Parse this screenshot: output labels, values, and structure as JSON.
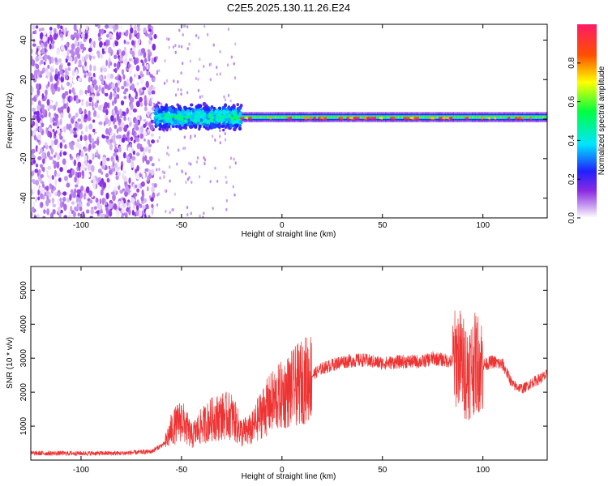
{
  "title": "C2E5.2025.130.11.26.E24",
  "chart_data": [
    {
      "type": "heatmap",
      "xlabel": "Height of straight line (km)",
      "ylabel": "Frequency (Hz)",
      "xlim": [
        -125,
        132
      ],
      "ylim": [
        -50,
        48
      ],
      "xticks": [
        -100,
        -50,
        0,
        50,
        100
      ],
      "yticks": [
        -40,
        -20,
        0,
        20,
        40
      ],
      "colorbar": {
        "label": "Normalized spectral amplitude",
        "range": [
          0,
          1
        ],
        "ticks": [
          0.0,
          0.2,
          0.4,
          0.6,
          0.8
        ],
        "tick_labels": [
          "0.0",
          "0.2",
          "0.4",
          "0.6",
          "0.8"
        ],
        "colormap": "rainbow"
      },
      "regions": [
        {
          "x_range": [
            -125,
            -63
          ],
          "description": "broadband noise",
          "amplitude": [
            0.0,
            0.1
          ]
        },
        {
          "x_range": [
            -63,
            -20
          ],
          "center_hz": 3,
          "width_hz": 8,
          "amplitude": [
            0.1,
            0.5
          ]
        },
        {
          "x_range": [
            -20,
            132
          ],
          "center_hz": 1,
          "width_hz": 3,
          "amplitude": [
            0.3,
            1.0
          ]
        }
      ]
    },
    {
      "type": "line",
      "xlabel": "Height of straight line (km)",
      "ylabel": "SNR (10 * v/v)",
      "xlim": [
        -125,
        132
      ],
      "ylim": [
        0,
        5700
      ],
      "xticks": [
        -100,
        -50,
        0,
        50,
        100
      ],
      "yticks": [
        1000,
        2000,
        3000,
        4000,
        5000
      ],
      "series": [
        {
          "color": "#ee3333",
          "x": [
            -125,
            -100,
            -80,
            -65,
            -58,
            -55,
            -50,
            -45,
            -40,
            -35,
            -30,
            -25,
            -20,
            -15,
            -10,
            -5,
            0,
            5,
            10,
            15,
            20,
            30,
            40,
            50,
            60,
            70,
            75,
            80,
            85,
            88,
            90,
            92,
            95,
            97,
            100,
            105,
            110,
            115,
            120,
            125,
            132
          ],
          "y": [
            200,
            200,
            200,
            250,
            500,
            900,
            1200,
            700,
            1000,
            1200,
            1300,
            1300,
            800,
            900,
            1400,
            1700,
            1900,
            2100,
            2300,
            2500,
            2700,
            2900,
            2950,
            2850,
            2900,
            2900,
            3000,
            2950,
            2900,
            3100,
            2800,
            2600,
            2800,
            2900,
            2800,
            2900,
            2800,
            2200,
            2100,
            2300,
            2500
          ]
        }
      ]
    }
  ]
}
